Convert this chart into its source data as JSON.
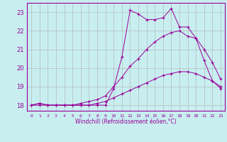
{
  "xlabel": "Windchill (Refroidissement éolien,°C)",
  "ylabel": "",
  "background_color": "#c8eef0",
  "line_color": "#990099",
  "grid_color": "#b0b0b0",
  "x_ticks": [
    0,
    1,
    2,
    3,
    4,
    5,
    6,
    7,
    8,
    9,
    10,
    11,
    12,
    13,
    14,
    15,
    16,
    17,
    18,
    19,
    20,
    21,
    22,
    23
  ],
  "y_ticks": [
    18,
    19,
    20,
    21,
    22,
    23
  ],
  "xlim": [
    -0.5,
    23.5
  ],
  "ylim": [
    17.7,
    23.5
  ],
  "series": [
    {
      "x": [
        0,
        1,
        2,
        3,
        4,
        5,
        6,
        7,
        8,
        9,
        10,
        11,
        12,
        13,
        14,
        15,
        16,
        17,
        18,
        19,
        20,
        21,
        22,
        23
      ],
      "y": [
        18.0,
        18.1,
        18.0,
        18.0,
        18.0,
        18.0,
        18.0,
        18.0,
        18.0,
        18.0,
        18.9,
        20.6,
        23.1,
        22.9,
        22.6,
        22.6,
        22.7,
        23.2,
        22.2,
        22.2,
        21.6,
        20.4,
        19.3,
        18.9
      ]
    },
    {
      "x": [
        0,
        1,
        2,
        3,
        4,
        5,
        6,
        7,
        8,
        9,
        10,
        11,
        12,
        13,
        14,
        15,
        16,
        17,
        18,
        19,
        20,
        21,
        22,
        23
      ],
      "y": [
        18.0,
        18.1,
        18.0,
        18.0,
        18.0,
        18.0,
        18.1,
        18.2,
        18.3,
        18.5,
        19.0,
        19.5,
        20.1,
        20.5,
        21.0,
        21.4,
        21.7,
        21.9,
        22.0,
        21.7,
        21.6,
        21.0,
        20.3,
        19.4
      ]
    },
    {
      "x": [
        0,
        1,
        2,
        3,
        4,
        5,
        6,
        7,
        8,
        9,
        10,
        11,
        12,
        13,
        14,
        15,
        16,
        17,
        18,
        19,
        20,
        21,
        22,
        23
      ],
      "y": [
        18.0,
        18.0,
        18.0,
        18.0,
        18.0,
        18.0,
        18.0,
        18.0,
        18.1,
        18.2,
        18.4,
        18.6,
        18.8,
        19.0,
        19.2,
        19.4,
        19.6,
        19.7,
        19.8,
        19.8,
        19.7,
        19.5,
        19.3,
        19.0
      ]
    }
  ]
}
